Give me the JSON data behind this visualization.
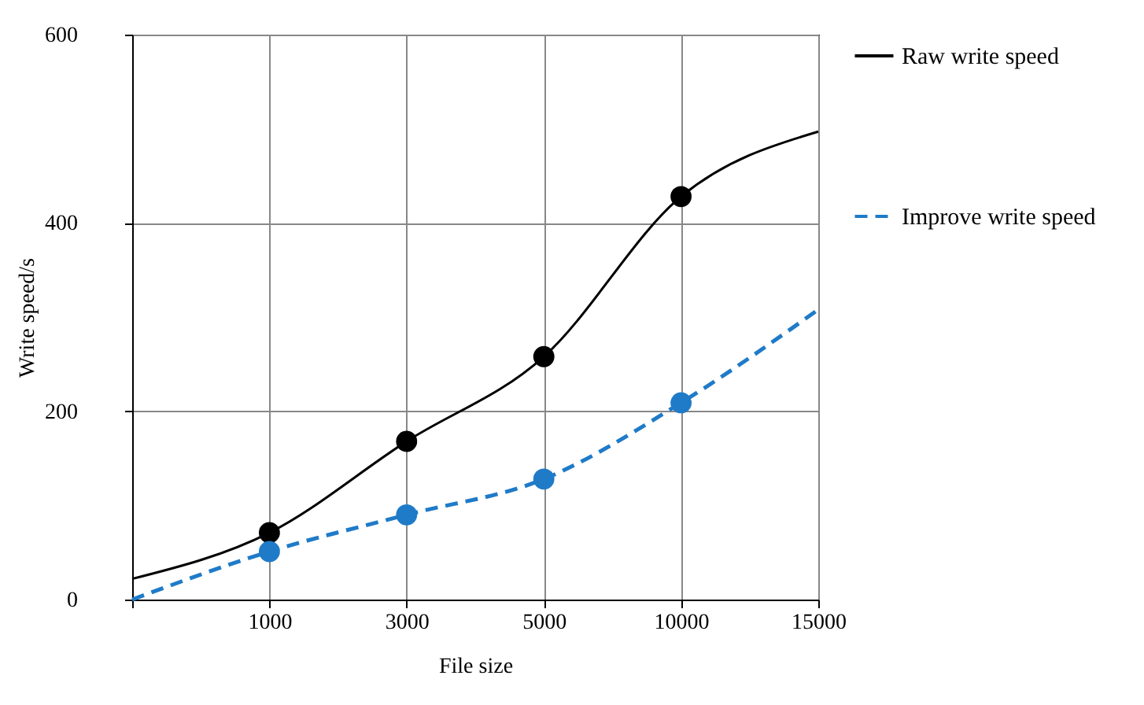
{
  "chart_data": {
    "type": "line",
    "xlabel": "File size",
    "ylabel": "Write speed/s",
    "categories": [
      null,
      "1000",
      "3000",
      "5000",
      "10000",
      "15000"
    ],
    "ylim": [
      0,
      600
    ],
    "yticks": [
      0,
      200,
      400,
      600
    ],
    "grid": true,
    "legend": "right",
    "series": [
      {
        "name": "Raw write speed",
        "line_style": "solid",
        "color": "#000000",
        "values": [
          22,
          71,
          168,
          258,
          428,
          497
        ]
      },
      {
        "name": "Improve write speed",
        "line_style": "dashed",
        "color": "#1f7bc8",
        "values": [
          0,
          51,
          90,
          128,
          209,
          308
        ]
      },
      {
        "type": "scatter",
        "marker": "circle",
        "color": "#000000",
        "values": [
          null,
          71,
          168,
          258,
          428,
          null
        ]
      },
      {
        "type": "scatter",
        "marker": "circle",
        "color": "#1f7bc8",
        "values": [
          null,
          51,
          90,
          128,
          209,
          null
        ]
      }
    ]
  }
}
